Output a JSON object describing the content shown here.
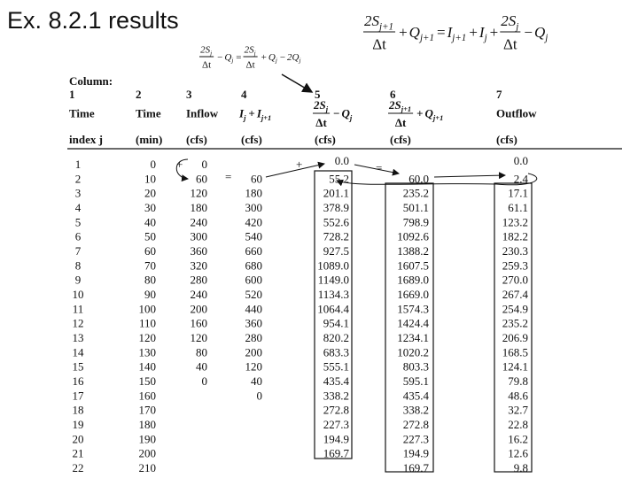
{
  "title": "Ex. 8.2.1 results",
  "formulas": {
    "main": [
      {
        "num": [
          {
            "base": "2S",
            "sub": "j+1"
          }
        ],
        "den": [
          "Δt"
        ]
      },
      "+",
      {
        "base": "Q",
        "sub": "j+1"
      },
      "=",
      {
        "base": "I",
        "sub": "j+1"
      },
      "+",
      {
        "base": "I",
        "sub": "j"
      },
      "+",
      {
        "num": [
          {
            "base": "2S",
            "sub": "j"
          }
        ],
        "den": [
          "Δt"
        ]
      },
      "−",
      {
        "base": "Q",
        "sub": "j"
      }
    ],
    "inset": [
      {
        "num": [
          {
            "base": "2S",
            "sub": "j"
          }
        ],
        "den": [
          "Δt"
        ]
      },
      "−",
      {
        "base": "Q",
        "sub": "j"
      },
      "=",
      {
        "num": [
          {
            "base": "2S",
            "sub": "j"
          }
        ],
        "den": [
          "Δt"
        ]
      },
      "+",
      {
        "base": "Q",
        "sub": "j"
      },
      "−",
      {
        "base": "2Q",
        "sub": "j"
      }
    ]
  },
  "table": {
    "column_label": "Column:",
    "column_numbers": [
      "1",
      "2",
      "3",
      "4",
      "5",
      "6",
      "7"
    ],
    "headers": [
      [
        "Time"
      ],
      [
        "Time"
      ],
      [
        "Inflow"
      ],
      [
        {
          "base": "I",
          "sub": "j"
        },
        "+",
        {
          "base": "I",
          "sub": "j+1"
        }
      ],
      [
        {
          "num": [
            {
              "base": "2S",
              "sub": "j"
            }
          ],
          "den": [
            "Δt"
          ]
        },
        "−",
        {
          "base": "Q",
          "sub": "j"
        }
      ],
      [
        {
          "num": [
            {
              "base": "2S",
              "sub": "j+1"
            }
          ],
          "den": [
            "Δt"
          ]
        },
        "+",
        {
          "base": "Q",
          "sub": "j+1"
        }
      ],
      [
        "Outflow"
      ]
    ],
    "units": [
      "index j",
      "(min)",
      "(cfs)",
      "(cfs)",
      "(cfs)",
      "(cfs)",
      "(cfs)"
    ],
    "rows": [
      [
        "1",
        "0",
        "0",
        null,
        "0.0",
        null,
        "0.0"
      ],
      [
        "2",
        "10",
        "60",
        "60",
        "55.2",
        "60.0",
        "2.4"
      ],
      [
        "3",
        "20",
        "120",
        "180",
        "201.1",
        "235.2",
        "17.1"
      ],
      [
        "4",
        "30",
        "180",
        "300",
        "378.9",
        "501.1",
        "61.1"
      ],
      [
        "5",
        "40",
        "240",
        "420",
        "552.6",
        "798.9",
        "123.2"
      ],
      [
        "6",
        "50",
        "300",
        "540",
        "728.2",
        "1092.6",
        "182.2"
      ],
      [
        "7",
        "60",
        "360",
        "660",
        "927.5",
        "1388.2",
        "230.3"
      ],
      [
        "8",
        "70",
        "320",
        "680",
        "1089.0",
        "1607.5",
        "259.3"
      ],
      [
        "9",
        "80",
        "280",
        "600",
        "1149.0",
        "1689.0",
        "270.0"
      ],
      [
        "10",
        "90",
        "240",
        "520",
        "1134.3",
        "1669.0",
        "267.4"
      ],
      [
        "11",
        "100",
        "200",
        "440",
        "1064.4",
        "1574.3",
        "254.9"
      ],
      [
        "12",
        "110",
        "160",
        "360",
        "954.1",
        "1424.4",
        "235.2"
      ],
      [
        "13",
        "120",
        "120",
        "280",
        "820.2",
        "1234.1",
        "206.9"
      ],
      [
        "14",
        "130",
        "80",
        "200",
        "683.3",
        "1020.2",
        "168.5"
      ],
      [
        "15",
        "140",
        "40",
        "120",
        "555.1",
        "803.3",
        "124.1"
      ],
      [
        "16",
        "150",
        "0",
        "40",
        "435.4",
        "595.1",
        "79.8"
      ],
      [
        "17",
        "160",
        null,
        "0",
        "338.2",
        "435.4",
        "48.6"
      ],
      [
        "18",
        "170",
        null,
        null,
        "272.8",
        "338.2",
        "32.7"
      ],
      [
        "19",
        "180",
        null,
        null,
        "227.3",
        "272.8",
        "22.8"
      ],
      [
        "20",
        "190",
        null,
        null,
        "194.9",
        "227.3",
        "16.2"
      ],
      [
        "21",
        "200",
        null,
        null,
        "169.7",
        "194.9",
        "12.6"
      ],
      [
        "22",
        "210",
        null,
        null,
        null,
        "169.7",
        "9.8"
      ]
    ]
  },
  "annotations": [
    "+",
    "=",
    "+",
    "="
  ]
}
